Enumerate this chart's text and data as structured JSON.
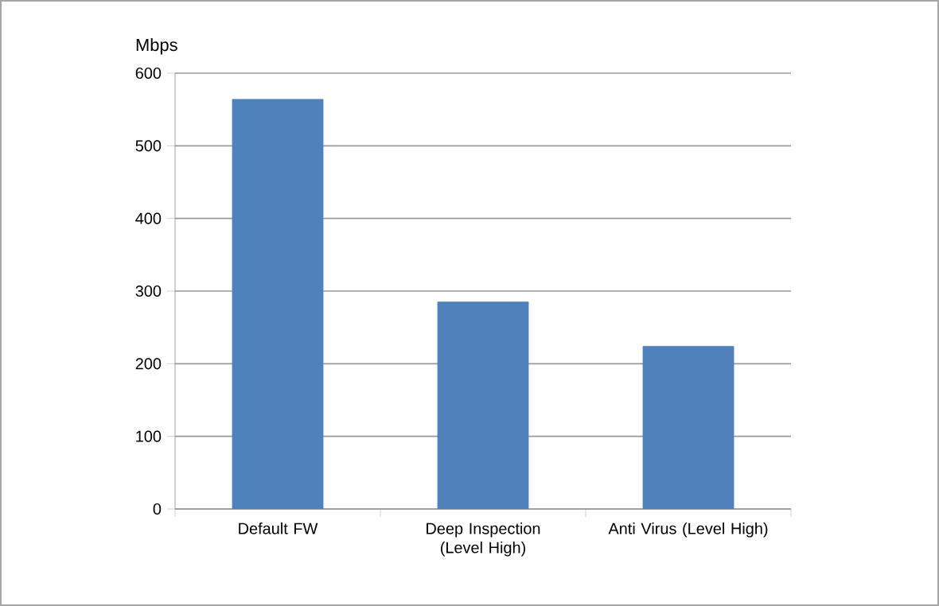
{
  "chart_data": {
    "type": "bar",
    "ylabel": "Mbps",
    "categories": [
      "Default FW",
      "Deep Inspection (Level High)",
      "Anti Virus (Level High)"
    ],
    "values": [
      564,
      285,
      224
    ],
    "color": "#4f81bd",
    "ylim": [
      0,
      600
    ],
    "yticks": [
      0,
      100,
      200,
      300,
      400,
      500,
      600
    ],
    "grid": "y"
  }
}
